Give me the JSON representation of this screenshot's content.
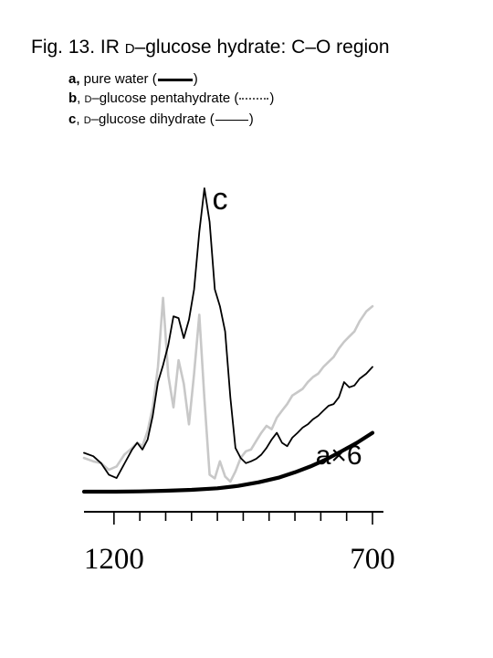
{
  "title": {
    "pre": "Fig. 13. IR ",
    "d": "D",
    "post": "–glucose hydrate: C–O region"
  },
  "legend": [
    {
      "key": "a,",
      "pre": " pure water (",
      "d": "",
      "text": "",
      "post": ")",
      "style": "a"
    },
    {
      "key": "b",
      "pre": ", ",
      "d": "D",
      "text": "–glucose pentahydrate (",
      "post": ")",
      "style": "b"
    },
    {
      "key": "c",
      "pre": ", ",
      "d": "D",
      "text": "–glucose dihydrate (",
      "post": ")",
      "style": "c"
    }
  ],
  "chart_data": {
    "type": "line",
    "x_axis": {
      "tick_labels": [
        "1200",
        "700"
      ],
      "xlim": [
        1258,
        700
      ],
      "reversed": true,
      "major_ticks": [
        1200,
        700
      ],
      "minor_ticks": [
        1150,
        1100,
        1050,
        1000,
        950,
        900,
        850,
        800,
        750
      ]
    },
    "y_axis": {
      "shown": false,
      "ylim": [
        0,
        1
      ]
    },
    "grid": false,
    "annotations": [
      {
        "text": "c",
        "series": "c",
        "x": 1010,
        "y": 0.93
      },
      {
        "text": "a×6",
        "series": "a",
        "x": 810,
        "y": 0.09
      }
    ],
    "series": [
      {
        "name": "c",
        "color": "#000000",
        "x": [
          1258,
          1240,
          1225,
          1210,
          1195,
          1180,
          1165,
          1155,
          1145,
          1135,
          1125,
          1115,
          1105,
          1095,
          1085,
          1075,
          1065,
          1055,
          1045,
          1035,
          1025,
          1015,
          1005,
          995,
          985,
          975,
          965,
          955,
          945,
          935,
          925,
          915,
          905,
          895,
          885,
          875,
          865,
          855,
          845,
          835,
          825,
          815,
          805,
          795,
          785,
          775,
          765,
          755,
          745,
          735,
          725,
          712,
          700
        ],
        "y": [
          0.128,
          0.117,
          0.094,
          0.056,
          0.045,
          0.092,
          0.139,
          0.161,
          0.139,
          0.172,
          0.25,
          0.361,
          0.417,
          0.483,
          0.578,
          0.572,
          0.506,
          0.567,
          0.667,
          0.856,
          1.0,
          0.889,
          0.667,
          0.611,
          0.528,
          0.311,
          0.144,
          0.111,
          0.094,
          0.1,
          0.108,
          0.122,
          0.144,
          0.172,
          0.194,
          0.161,
          0.15,
          0.178,
          0.194,
          0.211,
          0.222,
          0.239,
          0.25,
          0.267,
          0.283,
          0.289,
          0.311,
          0.361,
          0.344,
          0.35,
          0.372,
          0.389,
          0.411
        ]
      },
      {
        "name": "b",
        "color": "#c8c8c8",
        "x": [
          1258,
          1240,
          1225,
          1210,
          1195,
          1180,
          1165,
          1155,
          1145,
          1135,
          1125,
          1115,
          1105,
          1095,
          1085,
          1075,
          1065,
          1055,
          1045,
          1035,
          1025,
          1015,
          1005,
          995,
          985,
          975,
          965,
          955,
          945,
          935,
          925,
          915,
          905,
          895,
          885,
          875,
          865,
          855,
          845,
          835,
          825,
          815,
          805,
          795,
          785,
          775,
          765,
          755,
          745,
          735,
          725,
          712,
          700
        ],
        "y": [
          0.111,
          0.1,
          0.094,
          0.072,
          0.083,
          0.122,
          0.144,
          0.161,
          0.15,
          0.2,
          0.278,
          0.411,
          0.639,
          0.383,
          0.278,
          0.433,
          0.356,
          0.222,
          0.389,
          0.583,
          0.306,
          0.056,
          0.044,
          0.1,
          0.05,
          0.033,
          0.067,
          0.111,
          0.133,
          0.139,
          0.167,
          0.194,
          0.217,
          0.206,
          0.244,
          0.267,
          0.289,
          0.317,
          0.328,
          0.339,
          0.361,
          0.378,
          0.389,
          0.411,
          0.428,
          0.444,
          0.472,
          0.494,
          0.511,
          0.528,
          0.561,
          0.594,
          0.611
        ]
      },
      {
        "name": "a",
        "color": "#000000",
        "x": [
          1258,
          1200,
          1150,
          1100,
          1050,
          1000,
          960,
          920,
          880,
          850,
          820,
          790,
          760,
          730,
          700
        ],
        "y": [
          0.0,
          0.0,
          0.001,
          0.003,
          0.006,
          0.011,
          0.019,
          0.031,
          0.047,
          0.064,
          0.083,
          0.106,
          0.133,
          0.161,
          0.194
        ]
      }
    ]
  }
}
